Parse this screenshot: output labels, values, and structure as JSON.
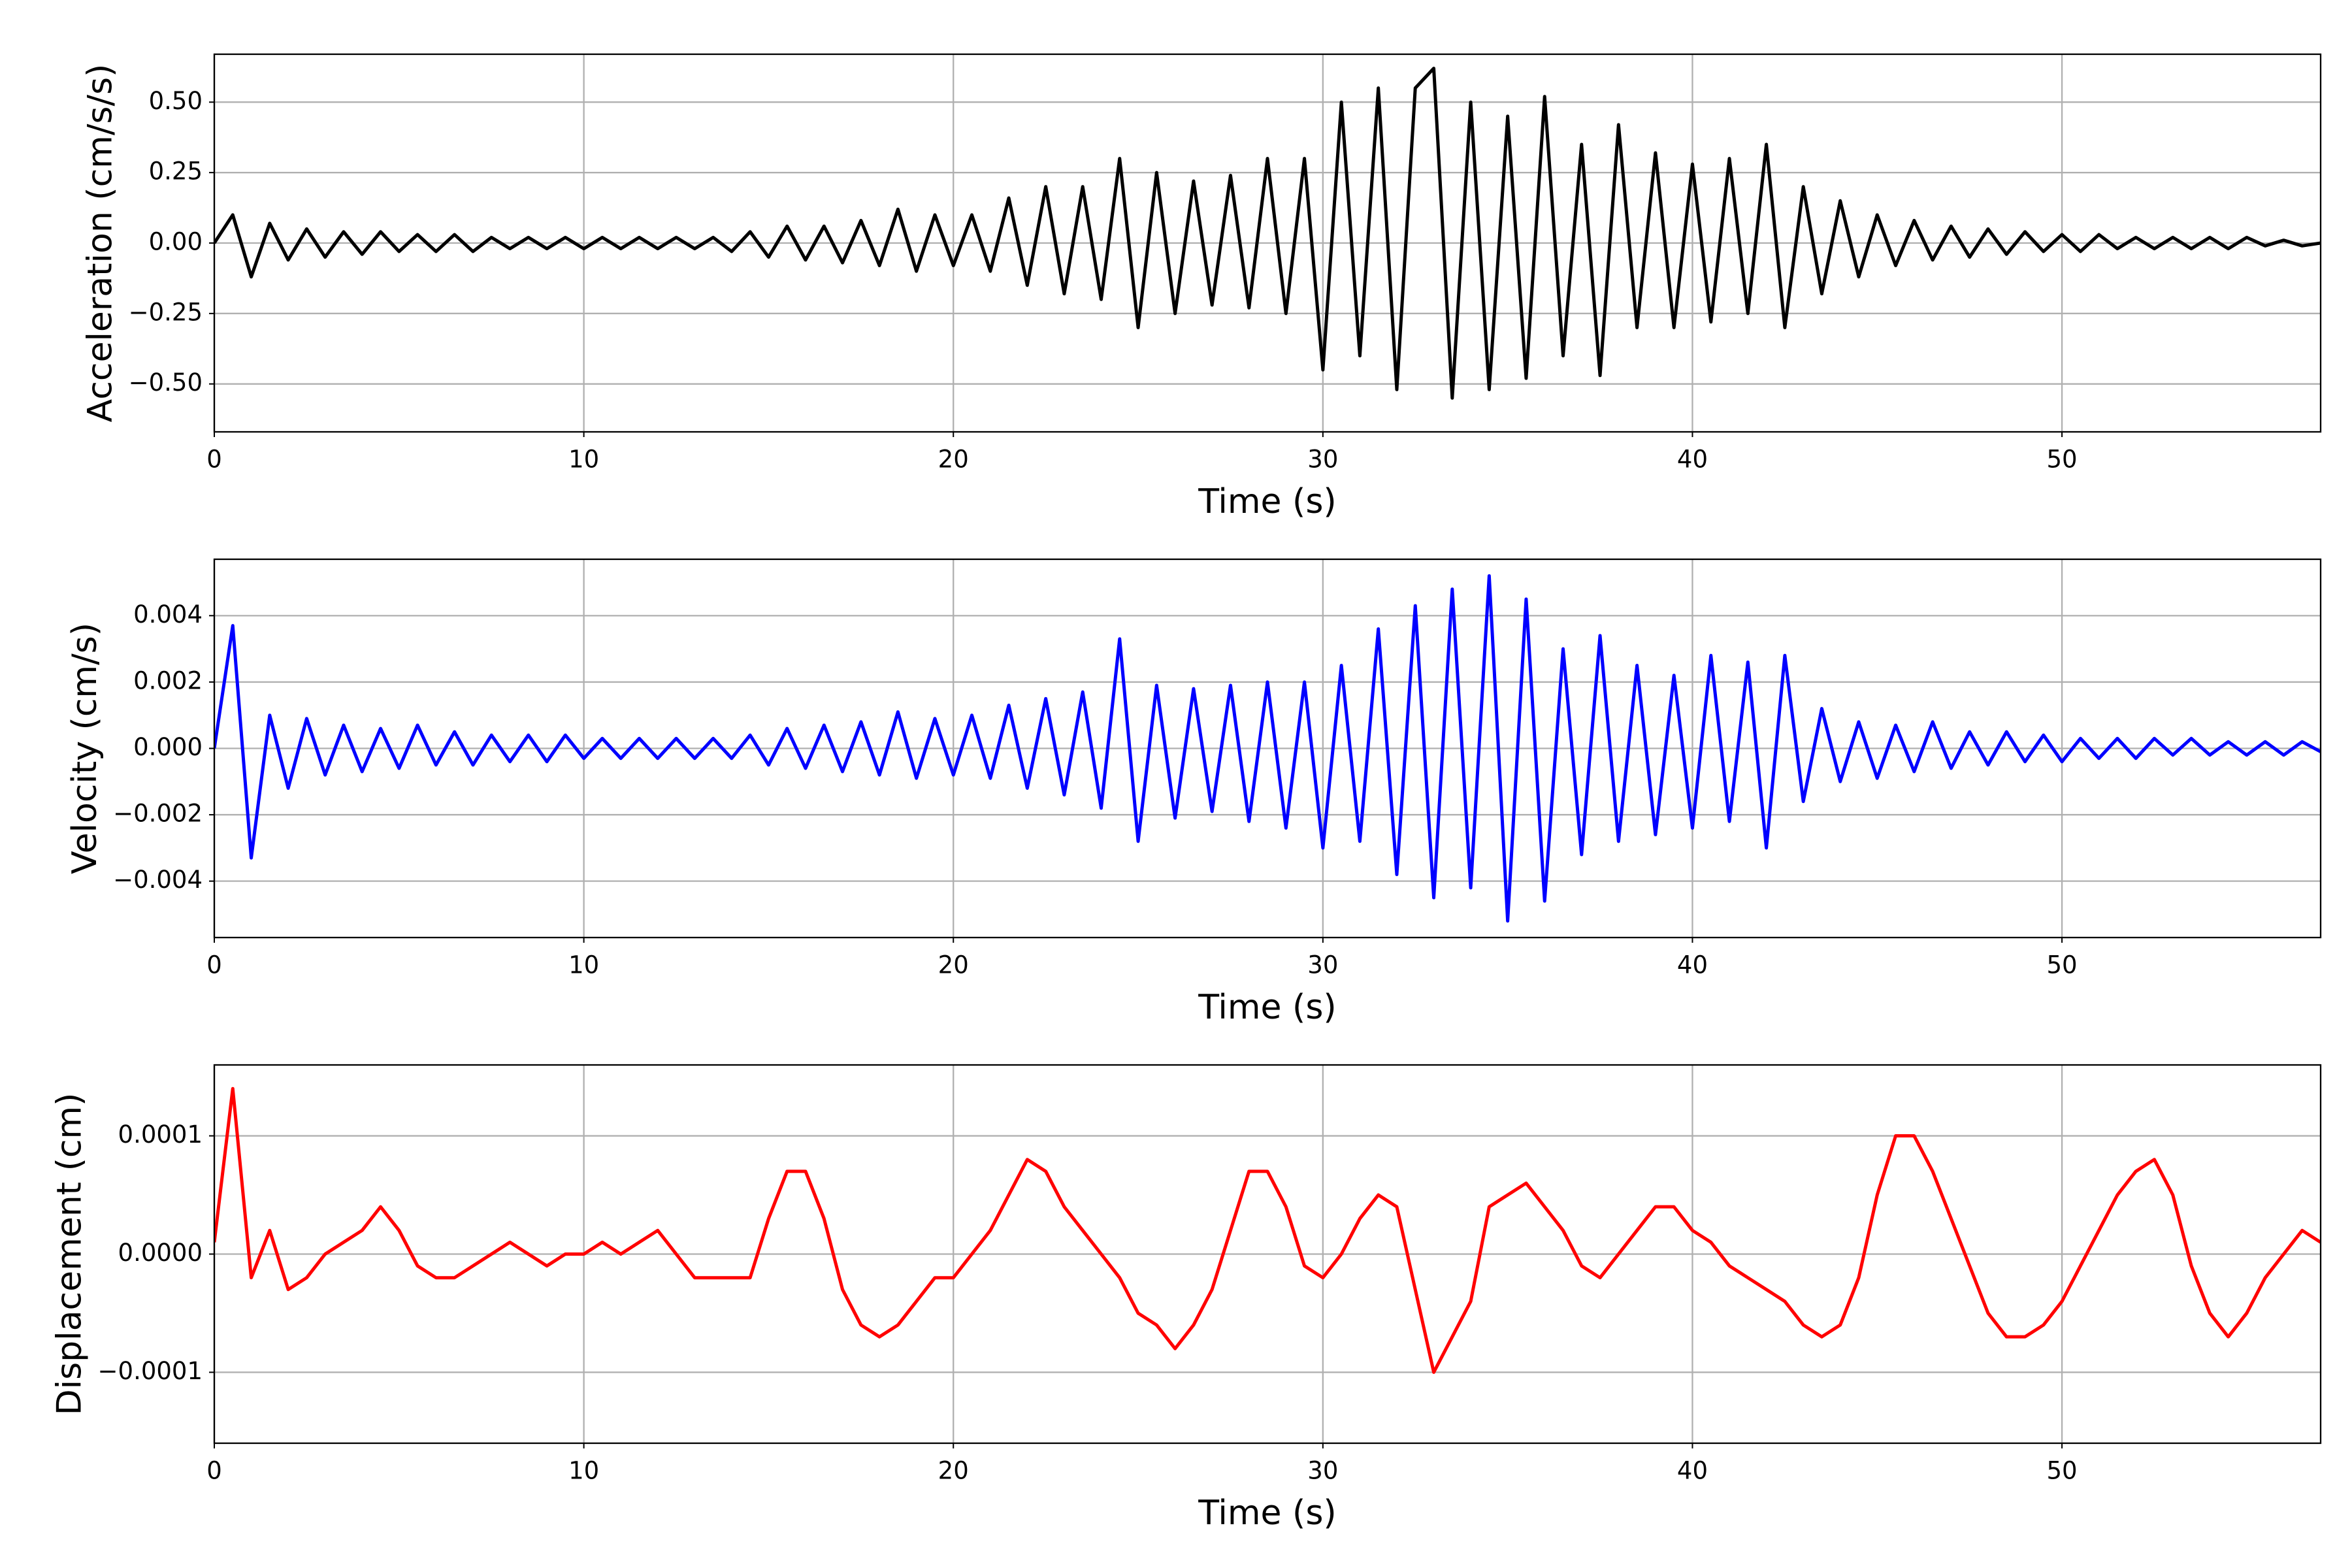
{
  "chart_data": [
    {
      "type": "line",
      "ylabel": "Acceleration (cm/s/s)",
      "xlabel": "Time (s)",
      "color": "#000000",
      "grid": true,
      "xlim": [
        0,
        57
      ],
      "xticks": [
        0,
        10,
        20,
        30,
        40,
        50
      ],
      "ylim": [
        -0.67,
        0.67
      ],
      "yticks": [
        {
          "value": -0.5,
          "label": "−0.50"
        },
        {
          "value": -0.25,
          "label": "−0.25"
        },
        {
          "value": 0,
          "label": "0.00"
        },
        0.25,
        {
          "value": 0.5,
          "label": "0.50"
        }
      ],
      "x": [
        0,
        0.5,
        1,
        1.5,
        2,
        2.5,
        3,
        3.5,
        4,
        4.5,
        5,
        5.5,
        6,
        6.5,
        7,
        7.5,
        8,
        8.5,
        9,
        9.5,
        10,
        10.5,
        11,
        11.5,
        12,
        12.5,
        13,
        13.5,
        14,
        14.5,
        15,
        15.5,
        16,
        16.5,
        17,
        17.5,
        18,
        18.5,
        19,
        19.5,
        20,
        20.5,
        21,
        21.5,
        22,
        22.5,
        23,
        23.5,
        24,
        24.5,
        25,
        25.5,
        26,
        26.5,
        27,
        27.5,
        28,
        28.5,
        29,
        29.5,
        30,
        30.5,
        31,
        31.5,
        32,
        32.5,
        33,
        33.5,
        34,
        34.5,
        35,
        35.5,
        36,
        36.5,
        37,
        37.5,
        38,
        38.5,
        39,
        39.5,
        40,
        40.5,
        41,
        41.5,
        42,
        42.5,
        43,
        43.5,
        44,
        44.5,
        45,
        45.5,
        46,
        46.5,
        47,
        47.5,
        48,
        48.5,
        49,
        49.5,
        50,
        50.5,
        51,
        51.5,
        52,
        52.5,
        53,
        53.5,
        54,
        54.5,
        55,
        55.5,
        56,
        56.5,
        57
      ],
      "values": [
        0,
        0.1,
        -0.12,
        0.07,
        -0.06,
        0.05,
        -0.05,
        0.04,
        -0.04,
        0.04,
        -0.03,
        0.03,
        -0.03,
        0.03,
        -0.03,
        0.02,
        -0.02,
        0.02,
        -0.02,
        0.02,
        -0.02,
        0.02,
        -0.02,
        0.02,
        -0.02,
        0.02,
        -0.02,
        0.02,
        -0.03,
        0.04,
        -0.05,
        0.06,
        -0.06,
        0.06,
        -0.07,
        0.08,
        -0.08,
        0.12,
        -0.1,
        0.1,
        -0.08,
        0.1,
        -0.1,
        0.16,
        -0.15,
        0.2,
        -0.18,
        0.2,
        -0.2,
        0.3,
        -0.3,
        0.25,
        -0.25,
        0.22,
        -0.22,
        0.24,
        -0.23,
        0.3,
        -0.25,
        0.3,
        -0.45,
        0.5,
        -0.4,
        0.55,
        -0.52,
        0.55,
        0.62,
        -0.55,
        0.5,
        -0.52,
        0.45,
        -0.48,
        0.52,
        -0.4,
        0.35,
        -0.47,
        0.42,
        -0.3,
        0.32,
        -0.3,
        0.28,
        -0.28,
        0.3,
        -0.25,
        0.35,
        -0.3,
        0.2,
        -0.18,
        0.15,
        -0.12,
        0.1,
        -0.08,
        0.08,
        -0.06,
        0.06,
        -0.05,
        0.05,
        -0.04,
        0.04,
        -0.03,
        0.03,
        -0.03,
        0.03,
        -0.02,
        0.02,
        -0.02,
        0.02,
        -0.02,
        0.02,
        -0.02,
        0.02,
        -0.01,
        0.01,
        -0.01,
        0
      ]
    },
    {
      "type": "line",
      "ylabel": "Velocity (cm/s)",
      "xlabel": "Time (s)",
      "color": "#0000ff",
      "grid": true,
      "xlim": [
        0,
        57
      ],
      "xticks": [
        0,
        10,
        20,
        30,
        40,
        50
      ],
      "ylim": [
        -0.0057,
        0.0057
      ],
      "yticks": [
        {
          "value": -0.004,
          "label": "−0.004"
        },
        {
          "value": -0.002,
          "label": "−0.002"
        },
        {
          "value": 0,
          "label": "0.000"
        },
        0.002,
        0.004
      ],
      "x": [
        0,
        0.5,
        1,
        1.5,
        2,
        2.5,
        3,
        3.5,
        4,
        4.5,
        5,
        5.5,
        6,
        6.5,
        7,
        7.5,
        8,
        8.5,
        9,
        9.5,
        10,
        10.5,
        11,
        11.5,
        12,
        12.5,
        13,
        13.5,
        14,
        14.5,
        15,
        15.5,
        16,
        16.5,
        17,
        17.5,
        18,
        18.5,
        19,
        19.5,
        20,
        20.5,
        21,
        21.5,
        22,
        22.5,
        23,
        23.5,
        24,
        24.5,
        25,
        25.5,
        26,
        26.5,
        27,
        27.5,
        28,
        28.5,
        29,
        29.5,
        30,
        30.5,
        31,
        31.5,
        32,
        32.5,
        33,
        33.5,
        34,
        34.5,
        35,
        35.5,
        36,
        36.5,
        37,
        37.5,
        38,
        38.5,
        39,
        39.5,
        40,
        40.5,
        41,
        41.5,
        42,
        42.5,
        43,
        43.5,
        44,
        44.5,
        45,
        45.5,
        46,
        46.5,
        47,
        47.5,
        48,
        48.5,
        49,
        49.5,
        50,
        50.5,
        51,
        51.5,
        52,
        52.5,
        53,
        53.5,
        54,
        54.5,
        55,
        55.5,
        56,
        56.5,
        57
      ],
      "values": [
        0,
        0.0037,
        -0.0033,
        0.001,
        -0.0012,
        0.0009,
        -0.0008,
        0.0007,
        -0.0007,
        0.0006,
        -0.0006,
        0.0007,
        -0.0005,
        0.0005,
        -0.0005,
        0.0004,
        -0.0004,
        0.0004,
        -0.0004,
        0.0004,
        -0.0003,
        0.0003,
        -0.0003,
        0.0003,
        -0.0003,
        0.0003,
        -0.0003,
        0.0003,
        -0.0003,
        0.0004,
        -0.0005,
        0.0006,
        -0.0006,
        0.0007,
        -0.0007,
        0.0008,
        -0.0008,
        0.0011,
        -0.0009,
        0.0009,
        -0.0008,
        0.001,
        -0.0009,
        0.0013,
        -0.0012,
        0.0015,
        -0.0014,
        0.0017,
        -0.0018,
        0.0033,
        -0.0028,
        0.0019,
        -0.0021,
        0.0018,
        -0.0019,
        0.0019,
        -0.0022,
        0.002,
        -0.0024,
        0.002,
        -0.003,
        0.0025,
        -0.0028,
        0.0036,
        -0.0038,
        0.0043,
        -0.0045,
        0.0048,
        -0.0042,
        0.0052,
        -0.0052,
        0.0045,
        -0.0046,
        0.003,
        -0.0032,
        0.0034,
        -0.0028,
        0.0025,
        -0.0026,
        0.0022,
        -0.0024,
        0.0028,
        -0.0022,
        0.0026,
        -0.003,
        0.0028,
        -0.0016,
        0.0012,
        -0.001,
        0.0008,
        -0.0009,
        0.0007,
        -0.0007,
        0.0008,
        -0.0006,
        0.0005,
        -0.0005,
        0.0005,
        -0.0004,
        0.0004,
        -0.0004,
        0.0003,
        -0.0003,
        0.0003,
        -0.0003,
        0.0003,
        -0.0002,
        0.0003,
        -0.0002,
        0.0002,
        -0.0002,
        0.0002,
        -0.0002,
        0.0002,
        -0.0001
      ]
    },
    {
      "type": "line",
      "ylabel": "Displacement (cm)",
      "xlabel": "Time (s)",
      "color": "#ff0000",
      "grid": true,
      "xlim": [
        0,
        57
      ],
      "xticks": [
        0,
        10,
        20,
        30,
        40,
        50
      ],
      "ylim": [
        -0.00016,
        0.00016
      ],
      "yticks": [
        {
          "value": -0.0001,
          "label": "−0.0001"
        },
        {
          "value": 0,
          "label": "0.0000"
        },
        0.0001
      ],
      "x": [
        0,
        0.5,
        1,
        1.5,
        2,
        2.5,
        3,
        3.5,
        4,
        4.5,
        5,
        5.5,
        6,
        6.5,
        7,
        7.5,
        8,
        8.5,
        9,
        9.5,
        10,
        10.5,
        11,
        11.5,
        12,
        12.5,
        13,
        13.5,
        14,
        14.5,
        15,
        15.5,
        16,
        16.5,
        17,
        17.5,
        18,
        18.5,
        19,
        19.5,
        20,
        20.5,
        21,
        21.5,
        22,
        22.5,
        23,
        23.5,
        24,
        24.5,
        25,
        25.5,
        26,
        26.5,
        27,
        27.5,
        28,
        28.5,
        29,
        29.5,
        30,
        30.5,
        31,
        31.5,
        32,
        32.5,
        33,
        33.5,
        34,
        34.5,
        35,
        35.5,
        36,
        36.5,
        37,
        37.5,
        38,
        38.5,
        39,
        39.5,
        40,
        40.5,
        41,
        41.5,
        42,
        42.5,
        43,
        43.5,
        44,
        44.5,
        45,
        45.5,
        46,
        46.5,
        47,
        47.5,
        48,
        48.5,
        49,
        49.5,
        50,
        50.5,
        51,
        51.5,
        52,
        52.5,
        53,
        53.5,
        54,
        54.5,
        55,
        55.5,
        56,
        56.5,
        57
      ],
      "values": [
        1e-05,
        0.00014,
        -2e-05,
        2e-05,
        -3e-05,
        -2e-05,
        0,
        1e-05,
        2e-05,
        4e-05,
        2e-05,
        -1e-05,
        -2e-05,
        -2e-05,
        -1e-05,
        0,
        1e-05,
        0,
        -1e-05,
        0,
        0,
        1e-05,
        0,
        1e-05,
        2e-05,
        0,
        -2e-05,
        -2e-05,
        -2e-05,
        -2e-05,
        3e-05,
        7e-05,
        7e-05,
        3e-05,
        -3e-05,
        -6e-05,
        -7e-05,
        -6e-05,
        -4e-05,
        -2e-05,
        -2e-05,
        0,
        2e-05,
        5e-05,
        8e-05,
        7e-05,
        4e-05,
        2e-05,
        0,
        -2e-05,
        -5e-05,
        -6e-05,
        -8e-05,
        -6e-05,
        -3e-05,
        2e-05,
        7e-05,
        7e-05,
        4e-05,
        -1e-05,
        -2e-05,
        0,
        3e-05,
        5e-05,
        4e-05,
        -3e-05,
        -0.0001,
        -7e-05,
        -4e-05,
        4e-05,
        5e-05,
        6e-05,
        4e-05,
        2e-05,
        -1e-05,
        -2e-05,
        0,
        2e-05,
        4e-05,
        4e-05,
        2e-05,
        1e-05,
        -1e-05,
        -2e-05,
        -3e-05,
        -4e-05,
        -6e-05,
        -7e-05,
        -6e-05,
        -2e-05,
        5e-05,
        0.0001,
        0.0001,
        7e-05,
        3e-05,
        -1e-05,
        -5e-05,
        -7e-05,
        -7e-05,
        -6e-05,
        -4e-05,
        -1e-05,
        2e-05,
        5e-05,
        7e-05,
        8e-05,
        5e-05,
        -1e-05,
        -5e-05,
        -7e-05,
        -5e-05,
        -2e-05,
        0,
        2e-05,
        1e-05
      ]
    }
  ]
}
